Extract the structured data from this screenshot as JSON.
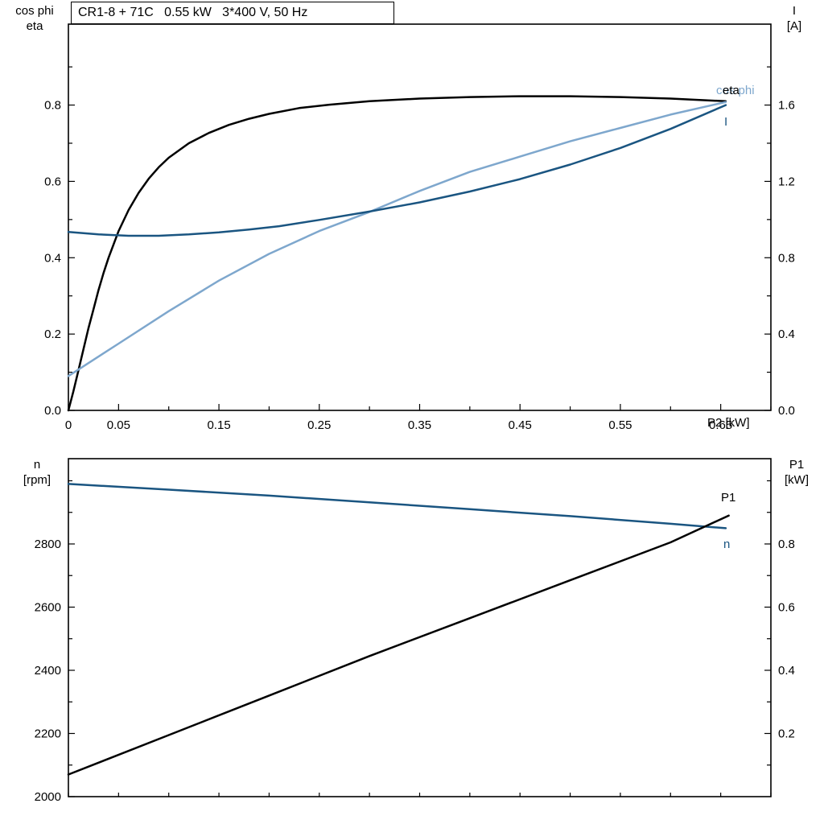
{
  "colors": {
    "black": "#000000",
    "dark_blue": "#1a5581",
    "light_blue": "#7ea7cd",
    "axis": "#000000",
    "background": "#ffffff"
  },
  "chart_data": [
    {
      "type": "line",
      "title": "CR1-8 + 71C   0.55 kW   3*400 V, 50 Hz",
      "xlabel": "P2 [kW]",
      "ylabel_left_lines": [
        "cos phi",
        "eta"
      ],
      "ylabel_right_lines": [
        "I",
        "[A]"
      ],
      "xlim": [
        0,
        0.7
      ],
      "ylim_left": [
        0,
        1.012
      ],
      "ylim_right": [
        0,
        2.024
      ],
      "grid": false,
      "legend_position": "end-of-curve",
      "x_ticks": [
        {
          "v": 0,
          "t": "0"
        },
        {
          "v": 0.05,
          "t": "0.05"
        },
        {
          "v": 0.1,
          "t": ""
        },
        {
          "v": 0.15,
          "t": "0.15"
        },
        {
          "v": 0.2,
          "t": ""
        },
        {
          "v": 0.25,
          "t": "0.25"
        },
        {
          "v": 0.3,
          "t": ""
        },
        {
          "v": 0.35,
          "t": "0.35"
        },
        {
          "v": 0.4,
          "t": ""
        },
        {
          "v": 0.45,
          "t": "0.45"
        },
        {
          "v": 0.5,
          "t": ""
        },
        {
          "v": 0.55,
          "t": "0.55"
        },
        {
          "v": 0.6,
          "t": ""
        },
        {
          "v": 0.65,
          "t": "0.65"
        },
        {
          "v": 0.7,
          "t": ""
        }
      ],
      "yl_ticks": [
        {
          "v": 0,
          "t": "0.0"
        },
        {
          "v": 0.1,
          "t": ""
        },
        {
          "v": 0.2,
          "t": "0.2"
        },
        {
          "v": 0.3,
          "t": ""
        },
        {
          "v": 0.4,
          "t": "0.4"
        },
        {
          "v": 0.5,
          "t": ""
        },
        {
          "v": 0.6,
          "t": "0.6"
        },
        {
          "v": 0.7,
          "t": ""
        },
        {
          "v": 0.8,
          "t": "0.8"
        },
        {
          "v": 0.9,
          "t": ""
        }
      ],
      "yr_ticks": [
        {
          "v": 0,
          "t": "0.0"
        },
        {
          "v": 0.2,
          "t": ""
        },
        {
          "v": 0.4,
          "t": "0.4"
        },
        {
          "v": 0.6,
          "t": ""
        },
        {
          "v": 0.8,
          "t": "0.8"
        },
        {
          "v": 1.0,
          "t": ""
        },
        {
          "v": 1.2,
          "t": "1.2"
        },
        {
          "v": 1.4,
          "t": ""
        },
        {
          "v": 1.6,
          "t": "1.6"
        },
        {
          "v": 1.8,
          "t": ""
        }
      ],
      "series": [
        {
          "name": "eta",
          "color": "#000000",
          "axis": "left",
          "x": [
            0,
            0.005,
            0.01,
            0.015,
            0.02,
            0.025,
            0.03,
            0.035,
            0.04,
            0.05,
            0.06,
            0.07,
            0.08,
            0.09,
            0.1,
            0.12,
            0.14,
            0.16,
            0.18,
            0.2,
            0.23,
            0.26,
            0.3,
            0.35,
            0.4,
            0.45,
            0.5,
            0.55,
            0.6,
            0.655
          ],
          "y": [
            0,
            0.05,
            0.105,
            0.16,
            0.215,
            0.265,
            0.315,
            0.36,
            0.4,
            0.47,
            0.525,
            0.57,
            0.607,
            0.637,
            0.662,
            0.7,
            0.727,
            0.748,
            0.764,
            0.777,
            0.792,
            0.801,
            0.81,
            0.817,
            0.821,
            0.823,
            0.823,
            0.821,
            0.817,
            0.81
          ]
        },
        {
          "name": "cos phi",
          "color": "#7ea7cd",
          "axis": "left",
          "x": [
            0,
            0.05,
            0.1,
            0.15,
            0.2,
            0.25,
            0.3,
            0.35,
            0.4,
            0.45,
            0.5,
            0.55,
            0.6,
            0.655
          ],
          "y": [
            0.09,
            0.175,
            0.26,
            0.34,
            0.41,
            0.47,
            0.52,
            0.575,
            0.625,
            0.665,
            0.705,
            0.74,
            0.775,
            0.808
          ]
        },
        {
          "name": "I",
          "color": "#1a5581",
          "axis": "right",
          "x": [
            0,
            0.03,
            0.06,
            0.09,
            0.12,
            0.15,
            0.18,
            0.21,
            0.25,
            0.3,
            0.35,
            0.4,
            0.45,
            0.5,
            0.55,
            0.6,
            0.655
          ],
          "y": [
            0.935,
            0.922,
            0.915,
            0.915,
            0.922,
            0.933,
            0.948,
            0.965,
            0.998,
            1.042,
            1.09,
            1.147,
            1.212,
            1.288,
            1.375,
            1.475,
            1.6
          ]
        }
      ]
    },
    {
      "type": "line",
      "title": "",
      "xlabel": "",
      "ylabel_left_lines": [
        "n",
        "[rpm]"
      ],
      "ylabel_right_lines": [
        "P1",
        "[kW]"
      ],
      "xlim": [
        0,
        0.7
      ],
      "ylim_left": [
        2000,
        3070
      ],
      "ylim_right": [
        0,
        1.07
      ],
      "grid": false,
      "legend_position": "end-of-curve",
      "x_ticks": [
        {
          "v": 0,
          "t": ""
        },
        {
          "v": 0.05,
          "t": ""
        },
        {
          "v": 0.1,
          "t": ""
        },
        {
          "v": 0.15,
          "t": ""
        },
        {
          "v": 0.2,
          "t": ""
        },
        {
          "v": 0.25,
          "t": ""
        },
        {
          "v": 0.3,
          "t": ""
        },
        {
          "v": 0.35,
          "t": ""
        },
        {
          "v": 0.4,
          "t": ""
        },
        {
          "v": 0.45,
          "t": ""
        },
        {
          "v": 0.5,
          "t": ""
        },
        {
          "v": 0.55,
          "t": ""
        },
        {
          "v": 0.6,
          "t": ""
        },
        {
          "v": 0.65,
          "t": ""
        },
        {
          "v": 0.7,
          "t": ""
        }
      ],
      "yl_ticks": [
        {
          "v": 2000,
          "t": "2000"
        },
        {
          "v": 2100,
          "t": ""
        },
        {
          "v": 2200,
          "t": "2200"
        },
        {
          "v": 2300,
          "t": ""
        },
        {
          "v": 2400,
          "t": "2400"
        },
        {
          "v": 2500,
          "t": ""
        },
        {
          "v": 2600,
          "t": "2600"
        },
        {
          "v": 2700,
          "t": ""
        },
        {
          "v": 2800,
          "t": "2800"
        },
        {
          "v": 2900,
          "t": ""
        },
        {
          "v": 3000,
          "t": ""
        }
      ],
      "yr_ticks": [
        {
          "v": 0.1,
          "t": ""
        },
        {
          "v": 0.2,
          "t": "0.2"
        },
        {
          "v": 0.3,
          "t": ""
        },
        {
          "v": 0.4,
          "t": "0.4"
        },
        {
          "v": 0.5,
          "t": ""
        },
        {
          "v": 0.6,
          "t": "0.6"
        },
        {
          "v": 0.7,
          "t": ""
        },
        {
          "v": 0.8,
          "t": "0.8"
        },
        {
          "v": 0.9,
          "t": ""
        },
        {
          "v": 1.0,
          "t": ""
        }
      ],
      "series": [
        {
          "name": "n",
          "color": "#1a5581",
          "axis": "left",
          "x": [
            0,
            0.1,
            0.2,
            0.3,
            0.4,
            0.5,
            0.6,
            0.655
          ],
          "y": [
            2990,
            2972,
            2953,
            2932,
            2910,
            2888,
            2864,
            2850
          ]
        },
        {
          "name": "P1",
          "color": "#000000",
          "axis": "right",
          "x": [
            0,
            0.1,
            0.2,
            0.3,
            0.4,
            0.5,
            0.6,
            0.658
          ],
          "y": [
            0.07,
            0.195,
            0.32,
            0.445,
            0.565,
            0.685,
            0.805,
            0.89
          ]
        }
      ]
    }
  ]
}
